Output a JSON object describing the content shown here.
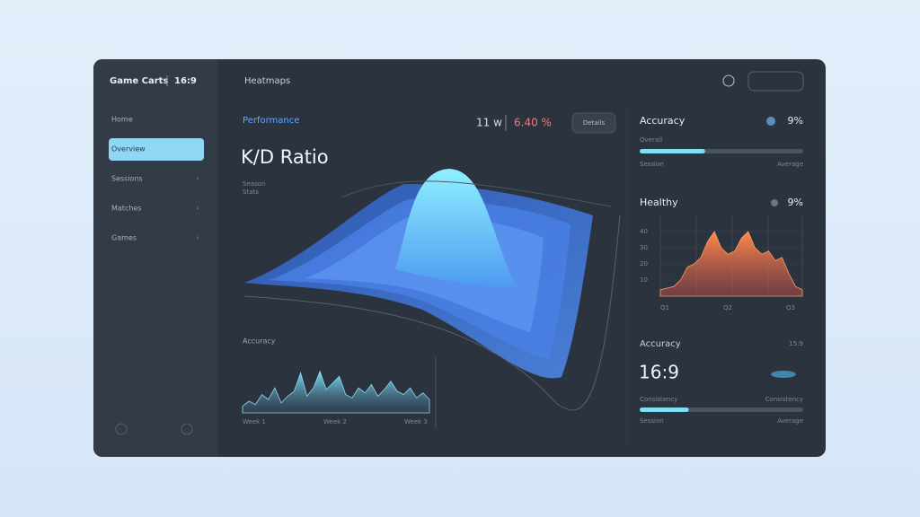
{
  "sidebar": {
    "brand": "Game Carts",
    "brand_tag": "16:9",
    "items": [
      "Home",
      "Overview",
      "Sessions",
      "Matches",
      "Games"
    ],
    "selected": 1
  },
  "header": {
    "title": "Heatmaps"
  },
  "main": {
    "label": "Performance",
    "title": "K/D Ratio",
    "subtitle_lines": [
      "Season",
      "Stats"
    ],
    "stat_a": "11 w",
    "stat_b": "6.40 %",
    "button": "Details",
    "mini_title": "Accuracy",
    "mini_chart": {
      "values": [
        8,
        14,
        10,
        22,
        16,
        30,
        12,
        20,
        26,
        48,
        20,
        30,
        50,
        28,
        36,
        44,
        22,
        18,
        30,
        24,
        34,
        20,
        28,
        38,
        26,
        22,
        30,
        18,
        24,
        16
      ],
      "ylim": [
        0,
        70
      ],
      "xlabels": [
        "Week 1",
        "Week 2",
        "Week 3"
      ]
    }
  },
  "right": {
    "accuracy": {
      "title": "Accuracy",
      "value": "9%",
      "label": "Overall",
      "progress": 40,
      "progress_max": 100,
      "left": "Session",
      "right": "Average"
    },
    "health": {
      "title": "Healthy",
      "value": "9%",
      "chart": {
        "values": [
          4,
          5,
          6,
          10,
          18,
          20,
          24,
          34,
          40,
          30,
          26,
          28,
          36,
          40,
          30,
          26,
          28,
          22,
          24,
          14,
          6,
          4
        ],
        "ylim": [
          0,
          50
        ],
        "yticks": [
          10,
          20,
          30,
          40
        ],
        "xlabels": [
          "Q1",
          "Q2",
          "Q3"
        ]
      }
    },
    "ratio": {
      "title": "Accuracy",
      "tag": "15:9",
      "value": "16:9",
      "label_left": "Consistency",
      "label_right": "Consistency",
      "progress": 30,
      "progress_max": 100,
      "left": "Session",
      "right": "Average"
    }
  }
}
